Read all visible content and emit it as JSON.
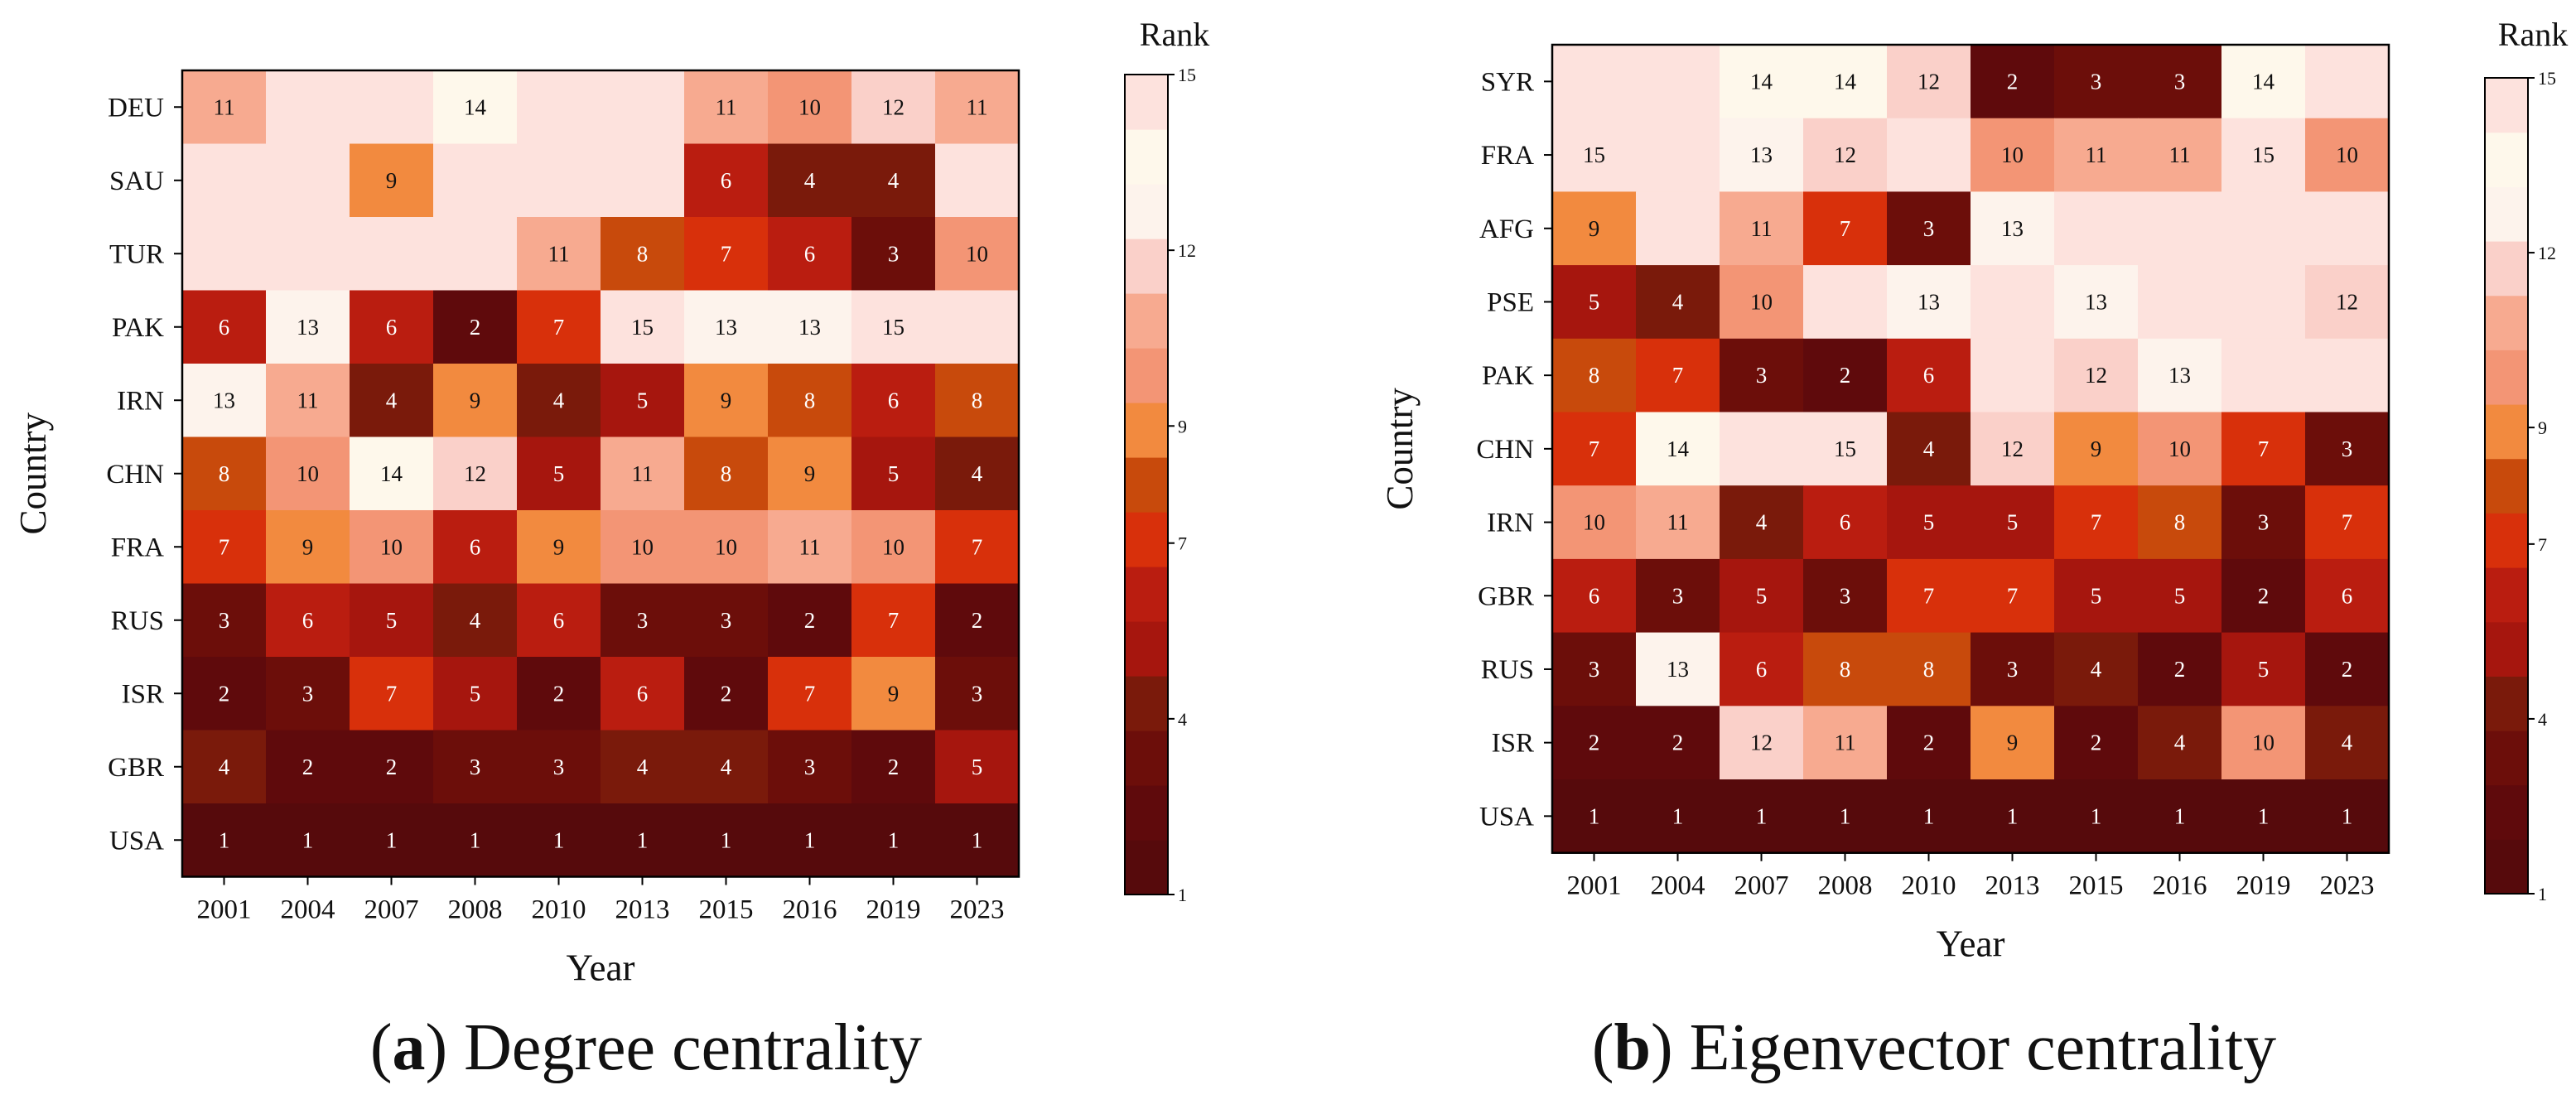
{
  "chart_data": [
    {
      "type": "heatmap",
      "title": "Degree centrality",
      "panel_letter": "a",
      "xlabel": "Year",
      "ylabel": "Country",
      "x": [
        "2001",
        "2004",
        "2007",
        "2008",
        "2010",
        "2013",
        "2015",
        "2016",
        "2019",
        "2023"
      ],
      "y": [
        "DEU",
        "SAU",
        "TUR",
        "PAK",
        "IRN",
        "CHN",
        "FRA",
        "RUS",
        "ISR",
        "GBR",
        "USA"
      ],
      "values": [
        [
          11,
          15,
          15,
          14,
          15,
          15,
          11,
          10,
          12,
          11
        ],
        [
          15,
          15,
          9,
          15,
          15,
          15,
          6,
          4,
          4,
          15
        ],
        [
          15,
          15,
          15,
          15,
          11,
          8,
          7,
          6,
          3,
          10
        ],
        [
          6,
          13,
          6,
          2,
          7,
          15,
          13,
          13,
          15,
          15
        ],
        [
          13,
          11,
          4,
          9,
          4,
          5,
          9,
          8,
          6,
          8
        ],
        [
          8,
          10,
          14,
          12,
          5,
          11,
          8,
          9,
          5,
          4
        ],
        [
          7,
          9,
          10,
          6,
          9,
          10,
          10,
          11,
          10,
          7
        ],
        [
          3,
          6,
          5,
          4,
          6,
          3,
          3,
          2,
          7,
          2
        ],
        [
          2,
          3,
          7,
          5,
          2,
          6,
          2,
          7,
          9,
          3
        ],
        [
          4,
          2,
          2,
          3,
          3,
          4,
          4,
          3,
          2,
          5
        ],
        [
          1,
          1,
          1,
          1,
          1,
          1,
          1,
          1,
          1,
          1
        ]
      ],
      "labels": [
        [
          "11",
          "",
          "",
          "14",
          "",
          "",
          "11",
          "10",
          "12",
          "11"
        ],
        [
          "",
          "",
          "9",
          "",
          "",
          "",
          "6",
          "4",
          "4",
          ""
        ],
        [
          "",
          "",
          "",
          "",
          "11",
          "8",
          "7",
          "6",
          "3",
          "10"
        ],
        [
          "6",
          "13",
          "6",
          "2",
          "7",
          "15",
          "13",
          "13",
          "15",
          ""
        ],
        [
          "13",
          "11",
          "4",
          "9",
          "4",
          "5",
          "9",
          "8",
          "6",
          "8"
        ],
        [
          "8",
          "10",
          "14",
          "12",
          "5",
          "11",
          "8",
          "9",
          "5",
          "4"
        ],
        [
          "7",
          "9",
          "10",
          "6",
          "9",
          "10",
          "10",
          "11",
          "10",
          "7"
        ],
        [
          "3",
          "6",
          "5",
          "4",
          "6",
          "3",
          "3",
          "2",
          "7",
          "2"
        ],
        [
          "2",
          "3",
          "7",
          "5",
          "2",
          "6",
          "2",
          "7",
          "9",
          "3"
        ],
        [
          "4",
          "2",
          "2",
          "3",
          "3",
          "4",
          "4",
          "3",
          "2",
          "5"
        ],
        [
          "1",
          "1",
          "1",
          "1",
          "1",
          "1",
          "1",
          "1",
          "1",
          "1"
        ]
      ],
      "colorbar": {
        "label": "Rank",
        "ticks": [
          "1",
          "4",
          "7",
          "9",
          "12",
          "15"
        ],
        "range": [
          1,
          15
        ]
      }
    },
    {
      "type": "heatmap",
      "title": "Eigenvector centrality",
      "panel_letter": "b",
      "xlabel": "Year",
      "ylabel": "Country",
      "x": [
        "2001",
        "2004",
        "2007",
        "2008",
        "2010",
        "2013",
        "2015",
        "2016",
        "2019",
        "2023"
      ],
      "y": [
        "SYR",
        "FRA",
        "AFG",
        "PSE",
        "PAK",
        "CHN",
        "IRN",
        "GBR",
        "RUS",
        "ISR",
        "USA"
      ],
      "values": [
        [
          15,
          15,
          14,
          14,
          12,
          2,
          3,
          3,
          14,
          15
        ],
        [
          15,
          15,
          13,
          12,
          15,
          10,
          11,
          11,
          15,
          10
        ],
        [
          9,
          15,
          11,
          7,
          3,
          13,
          15,
          15,
          15,
          15
        ],
        [
          5,
          4,
          10,
          15,
          13,
          15,
          13,
          15,
          15,
          12
        ],
        [
          8,
          7,
          3,
          2,
          6,
          15,
          12,
          13,
          15,
          15
        ],
        [
          7,
          14,
          15,
          15,
          4,
          12,
          9,
          10,
          7,
          3
        ],
        [
          10,
          11,
          4,
          6,
          5,
          5,
          7,
          8,
          3,
          7
        ],
        [
          6,
          3,
          5,
          3,
          7,
          7,
          5,
          5,
          2,
          6
        ],
        [
          3,
          13,
          6,
          8,
          8,
          3,
          4,
          2,
          5,
          2
        ],
        [
          2,
          2,
          12,
          11,
          2,
          9,
          2,
          4,
          10,
          4
        ],
        [
          1,
          1,
          1,
          1,
          1,
          1,
          1,
          1,
          1,
          1
        ]
      ],
      "labels": [
        [
          "",
          "",
          "14",
          "14",
          "12",
          "2",
          "3",
          "3",
          "14",
          ""
        ],
        [
          "15",
          "",
          "13",
          "12",
          "",
          "10",
          "11",
          "11",
          "15",
          "10"
        ],
        [
          "9",
          "",
          "11",
          "7",
          "3",
          "13",
          "",
          "",
          "",
          ""
        ],
        [
          "5",
          "4",
          "10",
          "",
          "13",
          "",
          "13",
          "",
          "",
          "12"
        ],
        [
          "8",
          "7",
          "3",
          "2",
          "6",
          "",
          "12",
          "13",
          "",
          ""
        ],
        [
          "7",
          "14",
          "",
          "15",
          "4",
          "12",
          "9",
          "10",
          "7",
          "3"
        ],
        [
          "10",
          "11",
          "4",
          "6",
          "5",
          "5",
          "7",
          "8",
          "3",
          "7"
        ],
        [
          "6",
          "3",
          "5",
          "3",
          "7",
          "7",
          "5",
          "5",
          "2",
          "6"
        ],
        [
          "3",
          "13",
          "6",
          "8",
          "8",
          "3",
          "4",
          "2",
          "5",
          "2"
        ],
        [
          "2",
          "2",
          "12",
          "11",
          "2",
          "9",
          "2",
          "4",
          "10",
          "4"
        ],
        [
          "1",
          "1",
          "1",
          "1",
          "1",
          "1",
          "1",
          "1",
          "1",
          "1"
        ]
      ],
      "colorbar": {
        "label": "Rank",
        "ticks": [
          "1",
          "4",
          "7",
          "9",
          "12",
          "15"
        ],
        "range": [
          1,
          15
        ]
      }
    }
  ],
  "colors": {
    "scale": [
      "#560a0c",
      "#5f0a0c",
      "#6c0e0a",
      "#7a1a0b",
      "#a6160e",
      "#ba1d10",
      "#d8300b",
      "#c84a0c",
      "#f28a3f",
      "#f39575",
      "#f7aa90",
      "#fad0c9",
      "#fdf3ec",
      "#fef8eb",
      "#fde2dd"
    ],
    "dark_text": "#ffffff",
    "light_text": "#111111"
  },
  "captions": {
    "a": {
      "letter": "a",
      "text": "Degree centrality"
    },
    "b": {
      "letter": "b",
      "text": "Eigenvector centrality"
    }
  }
}
